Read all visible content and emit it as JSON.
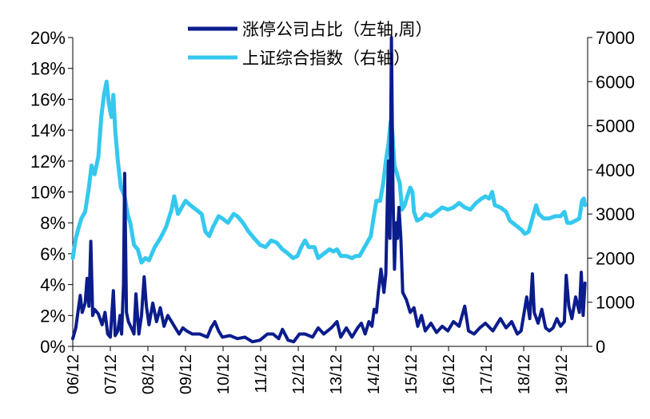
{
  "chart_data": {
    "type": "line",
    "title": "",
    "x_range": [
      "2006-12",
      "2020-06"
    ],
    "x_tick_labels": [
      "06/12",
      "07/12",
      "08/12",
      "09/12",
      "10/12",
      "11/12",
      "12/12",
      "13/12",
      "14/12",
      "15/12",
      "16/12",
      "17/12",
      "18/12",
      "19/12"
    ],
    "left_axis": {
      "ylim": [
        0,
        20
      ],
      "tick_values": [
        0,
        2,
        4,
        6,
        8,
        10,
        12,
        14,
        16,
        18,
        20
      ],
      "tick_labels": [
        "0%",
        "2%",
        "4%",
        "6%",
        "8%",
        "10%",
        "12%",
        "14%",
        "16%",
        "18%",
        "20%"
      ]
    },
    "right_axis": {
      "ylim": [
        0,
        7000
      ],
      "tick_values": [
        0,
        1000,
        2000,
        3000,
        4000,
        5000,
        6000,
        7000
      ],
      "tick_labels": [
        "0",
        "1000",
        "2000",
        "3000",
        "4000",
        "5000",
        "6000",
        "7000"
      ]
    },
    "series": [
      {
        "name": "涨停公司占比（左轴,周）",
        "axis": "left",
        "color": "#0b1c8c",
        "points": [
          [
            2006.92,
            0.5
          ],
          [
            2007.0,
            1.2
          ],
          [
            2007.08,
            2.6
          ],
          [
            2007.12,
            3.3
          ],
          [
            2007.17,
            2.2
          ],
          [
            2007.25,
            2.8
          ],
          [
            2007.3,
            4.4
          ],
          [
            2007.35,
            2.6
          ],
          [
            2007.4,
            6.8
          ],
          [
            2007.45,
            2.0
          ],
          [
            2007.5,
            2.4
          ],
          [
            2007.6,
            2.1
          ],
          [
            2007.7,
            1.4
          ],
          [
            2007.78,
            2.2
          ],
          [
            2007.85,
            0.8
          ],
          [
            2007.92,
            0.6
          ],
          [
            2008.0,
            3.6
          ],
          [
            2008.05,
            0.7
          ],
          [
            2008.12,
            1.0
          ],
          [
            2008.18,
            2.0
          ],
          [
            2008.22,
            0.8
          ],
          [
            2008.27,
            4.0
          ],
          [
            2008.3,
            11.2
          ],
          [
            2008.35,
            2.2
          ],
          [
            2008.4,
            1.6
          ],
          [
            2008.48,
            1.2
          ],
          [
            2008.55,
            0.8
          ],
          [
            2008.6,
            3.4
          ],
          [
            2008.68,
            0.8
          ],
          [
            2008.75,
            2.0
          ],
          [
            2008.82,
            4.5
          ],
          [
            2008.88,
            2.6
          ],
          [
            2008.95,
            1.4
          ],
          [
            2009.05,
            2.8
          ],
          [
            2009.15,
            1.6
          ],
          [
            2009.25,
            2.5
          ],
          [
            2009.35,
            1.3
          ],
          [
            2009.45,
            2.0
          ],
          [
            2009.55,
            1.6
          ],
          [
            2009.65,
            1.2
          ],
          [
            2009.75,
            0.8
          ],
          [
            2009.85,
            1.2
          ],
          [
            2009.95,
            1.0
          ],
          [
            2010.1,
            0.8
          ],
          [
            2010.3,
            0.8
          ],
          [
            2010.5,
            0.6
          ],
          [
            2010.6,
            1.2
          ],
          [
            2010.7,
            1.6
          ],
          [
            2010.8,
            1.0
          ],
          [
            2010.9,
            0.6
          ],
          [
            2011.1,
            0.7
          ],
          [
            2011.3,
            0.5
          ],
          [
            2011.5,
            0.6
          ],
          [
            2011.7,
            0.3
          ],
          [
            2011.9,
            0.4
          ],
          [
            2012.1,
            0.8
          ],
          [
            2012.25,
            0.8
          ],
          [
            2012.4,
            0.5
          ],
          [
            2012.5,
            1.1
          ],
          [
            2012.65,
            0.4
          ],
          [
            2012.8,
            0.3
          ],
          [
            2012.95,
            0.8
          ],
          [
            2013.1,
            0.8
          ],
          [
            2013.3,
            0.6
          ],
          [
            2013.45,
            1.2
          ],
          [
            2013.6,
            0.8
          ],
          [
            2013.8,
            1.2
          ],
          [
            2013.95,
            1.6
          ],
          [
            2014.05,
            0.6
          ],
          [
            2014.2,
            1.2
          ],
          [
            2014.35,
            0.6
          ],
          [
            2014.5,
            1.2
          ],
          [
            2014.6,
            1.5
          ],
          [
            2014.7,
            0.8
          ],
          [
            2014.8,
            1.6
          ],
          [
            2014.88,
            1.3
          ],
          [
            2014.94,
            2.4
          ],
          [
            2015.0,
            2.2
          ],
          [
            2015.05,
            3.5
          ],
          [
            2015.12,
            5.0
          ],
          [
            2015.2,
            3.5
          ],
          [
            2015.25,
            4.7
          ],
          [
            2015.29,
            9.5
          ],
          [
            2015.32,
            12.0
          ],
          [
            2015.36,
            7.0
          ],
          [
            2015.4,
            20.0
          ],
          [
            2015.44,
            10.0
          ],
          [
            2015.48,
            5.0
          ],
          [
            2015.52,
            8.0
          ],
          [
            2015.56,
            7.0
          ],
          [
            2015.6,
            9.0
          ],
          [
            2015.65,
            7.0
          ],
          [
            2015.7,
            3.5
          ],
          [
            2015.8,
            3.0
          ],
          [
            2015.9,
            2.2
          ],
          [
            2016.0,
            2.5
          ],
          [
            2016.1,
            1.3
          ],
          [
            2016.2,
            2.0
          ],
          [
            2016.3,
            1.0
          ],
          [
            2016.45,
            1.5
          ],
          [
            2016.6,
            0.9
          ],
          [
            2016.75,
            1.3
          ],
          [
            2016.9,
            1.0
          ],
          [
            2017.05,
            1.6
          ],
          [
            2017.2,
            1.3
          ],
          [
            2017.35,
            2.6
          ],
          [
            2017.45,
            1.0
          ],
          [
            2017.6,
            0.8
          ],
          [
            2017.75,
            1.2
          ],
          [
            2017.9,
            1.5
          ],
          [
            2018.1,
            1.0
          ],
          [
            2018.3,
            1.8
          ],
          [
            2018.45,
            1.2
          ],
          [
            2018.6,
            1.6
          ],
          [
            2018.75,
            0.8
          ],
          [
            2018.85,
            1.0
          ],
          [
            2019.0,
            3.2
          ],
          [
            2019.08,
            1.8
          ],
          [
            2019.15,
            4.7
          ],
          [
            2019.2,
            2.2
          ],
          [
            2019.3,
            1.5
          ],
          [
            2019.4,
            2.4
          ],
          [
            2019.5,
            1.2
          ],
          [
            2019.6,
            1.0
          ],
          [
            2019.7,
            1.2
          ],
          [
            2019.8,
            1.8
          ],
          [
            2019.9,
            1.3
          ],
          [
            2020.0,
            1.6
          ],
          [
            2020.05,
            4.6
          ],
          [
            2020.12,
            2.6
          ],
          [
            2020.2,
            1.8
          ],
          [
            2020.3,
            3.2
          ],
          [
            2020.4,
            2.2
          ],
          [
            2020.45,
            4.8
          ],
          [
            2020.5,
            2.0
          ],
          [
            2020.55,
            4.1
          ]
        ]
      },
      {
        "name": "上证综合指数（右轴）",
        "axis": "right",
        "color": "#35c8ee",
        "points": [
          [
            2006.92,
            2000
          ],
          [
            2007.0,
            2450
          ],
          [
            2007.08,
            2700
          ],
          [
            2007.15,
            2900
          ],
          [
            2007.25,
            3050
          ],
          [
            2007.35,
            3600
          ],
          [
            2007.42,
            4100
          ],
          [
            2007.5,
            3900
          ],
          [
            2007.6,
            4300
          ],
          [
            2007.68,
            5200
          ],
          [
            2007.75,
            5700
          ],
          [
            2007.82,
            6000
          ],
          [
            2007.88,
            5500
          ],
          [
            2007.95,
            5200
          ],
          [
            2008.0,
            5700
          ],
          [
            2008.05,
            4900
          ],
          [
            2008.12,
            4200
          ],
          [
            2008.2,
            3600
          ],
          [
            2008.3,
            3400
          ],
          [
            2008.38,
            3000
          ],
          [
            2008.45,
            2800
          ],
          [
            2008.55,
            2300
          ],
          [
            2008.65,
            2200
          ],
          [
            2008.75,
            1900
          ],
          [
            2008.85,
            2000
          ],
          [
            2008.95,
            1950
          ],
          [
            2009.1,
            2250
          ],
          [
            2009.25,
            2450
          ],
          [
            2009.4,
            2700
          ],
          [
            2009.55,
            3100
          ],
          [
            2009.62,
            3400
          ],
          [
            2009.72,
            3000
          ],
          [
            2009.82,
            3150
          ],
          [
            2009.92,
            3300
          ],
          [
            2010.05,
            3200
          ],
          [
            2010.2,
            3100
          ],
          [
            2010.35,
            3000
          ],
          [
            2010.45,
            2600
          ],
          [
            2010.55,
            2500
          ],
          [
            2010.65,
            2700
          ],
          [
            2010.8,
            2950
          ],
          [
            2010.9,
            2900
          ],
          [
            2011.05,
            2800
          ],
          [
            2011.2,
            3000
          ],
          [
            2011.3,
            2950
          ],
          [
            2011.45,
            2800
          ],
          [
            2011.6,
            2600
          ],
          [
            2011.75,
            2450
          ],
          [
            2011.9,
            2300
          ],
          [
            2012.05,
            2250
          ],
          [
            2012.2,
            2400
          ],
          [
            2012.35,
            2350
          ],
          [
            2012.5,
            2200
          ],
          [
            2012.65,
            2100
          ],
          [
            2012.78,
            2000
          ],
          [
            2012.9,
            2050
          ],
          [
            2013.0,
            2250
          ],
          [
            2013.1,
            2400
          ],
          [
            2013.2,
            2250
          ],
          [
            2013.35,
            2250
          ],
          [
            2013.45,
            2000
          ],
          [
            2013.6,
            2100
          ],
          [
            2013.75,
            2200
          ],
          [
            2013.85,
            2150
          ],
          [
            2013.95,
            2200
          ],
          [
            2014.05,
            2050
          ],
          [
            2014.2,
            2050
          ],
          [
            2014.35,
            2000
          ],
          [
            2014.45,
            2050
          ],
          [
            2014.55,
            2050
          ],
          [
            2014.65,
            2200
          ],
          [
            2014.75,
            2350
          ],
          [
            2014.85,
            2500
          ],
          [
            2014.92,
            2900
          ],
          [
            2015.0,
            3300
          ],
          [
            2015.1,
            3300
          ],
          [
            2015.18,
            3700
          ],
          [
            2015.25,
            4200
          ],
          [
            2015.32,
            4600
          ],
          [
            2015.38,
            5100
          ],
          [
            2015.42,
            4900
          ],
          [
            2015.48,
            4100
          ],
          [
            2015.55,
            3900
          ],
          [
            2015.62,
            3700
          ],
          [
            2015.68,
            3100
          ],
          [
            2015.75,
            3200
          ],
          [
            2015.82,
            3400
          ],
          [
            2015.9,
            3600
          ],
          [
            2015.96,
            3500
          ],
          [
            2016.0,
            3050
          ],
          [
            2016.08,
            2850
          ],
          [
            2016.2,
            2900
          ],
          [
            2016.3,
            3000
          ],
          [
            2016.45,
            2950
          ],
          [
            2016.6,
            3050
          ],
          [
            2016.75,
            3150
          ],
          [
            2016.9,
            3100
          ],
          [
            2017.05,
            3150
          ],
          [
            2017.2,
            3250
          ],
          [
            2017.35,
            3150
          ],
          [
            2017.5,
            3100
          ],
          [
            2017.65,
            3250
          ],
          [
            2017.8,
            3350
          ],
          [
            2017.9,
            3400
          ],
          [
            2018.0,
            3350
          ],
          [
            2018.08,
            3500
          ],
          [
            2018.15,
            3200
          ],
          [
            2018.3,
            3150
          ],
          [
            2018.45,
            3050
          ],
          [
            2018.55,
            2850
          ],
          [
            2018.7,
            2750
          ],
          [
            2018.85,
            2650
          ],
          [
            2018.95,
            2550
          ],
          [
            2019.05,
            2600
          ],
          [
            2019.15,
            2900
          ],
          [
            2019.25,
            3200
          ],
          [
            2019.32,
            3000
          ],
          [
            2019.45,
            2900
          ],
          [
            2019.6,
            2900
          ],
          [
            2019.75,
            2950
          ],
          [
            2019.9,
            2950
          ],
          [
            2020.0,
            3050
          ],
          [
            2020.08,
            2800
          ],
          [
            2020.18,
            2800
          ],
          [
            2020.3,
            2850
          ],
          [
            2020.4,
            2900
          ],
          [
            2020.47,
            3300
          ],
          [
            2020.52,
            3350
          ],
          [
            2020.55,
            3200
          ]
        ]
      }
    ],
    "legend": {
      "position": "top-center",
      "entries": [
        {
          "label": "涨停公司占比（左轴,周）",
          "color": "#0b1c8c"
        },
        {
          "label": "上证综合指数（右轴）",
          "color": "#35c8ee"
        }
      ]
    },
    "grid": false
  }
}
